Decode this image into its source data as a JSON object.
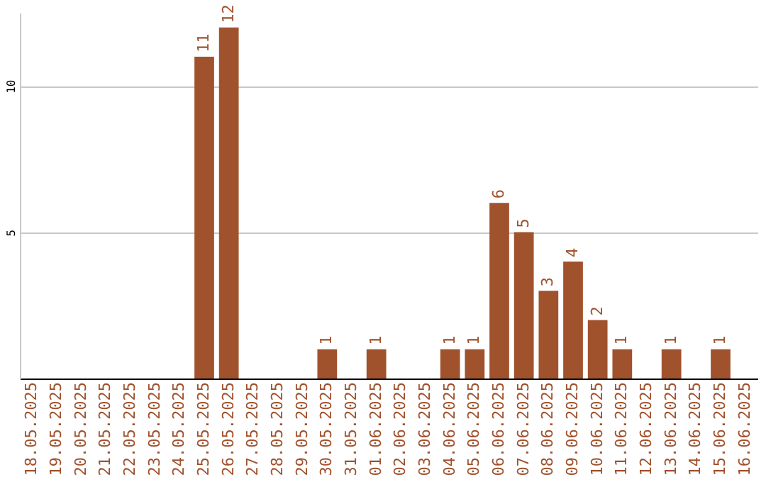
{
  "chart_data": {
    "type": "bar",
    "categories": [
      "18.05.2025",
      "19.05.2025",
      "20.05.2025",
      "21.05.2025",
      "22.05.2025",
      "23.05.2025",
      "24.05.2025",
      "25.05.2025",
      "26.05.2025",
      "27.05.2025",
      "28.05.2025",
      "29.05.2025",
      "30.05.2025",
      "31.05.2025",
      "01.06.2025",
      "02.06.2025",
      "03.06.2025",
      "04.06.2025",
      "05.06.2025",
      "06.06.2025",
      "07.06.2025",
      "08.06.2025",
      "09.06.2025",
      "10.06.2025",
      "11.06.2025",
      "12.06.2025",
      "13.06.2025",
      "14.06.2025",
      "15.06.2025",
      "16.06.2025"
    ],
    "values": [
      null,
      null,
      null,
      null,
      null,
      null,
      null,
      11,
      12,
      null,
      null,
      null,
      1,
      null,
      1,
      null,
      null,
      1,
      1,
      6,
      5,
      3,
      4,
      2,
      1,
      null,
      1,
      null,
      1,
      null
    ],
    "color": "#a0522d",
    "ylim": [
      0,
      12.5
    ],
    "yticks": [
      5,
      10
    ],
    "grid": "y",
    "data_labels": true
  }
}
